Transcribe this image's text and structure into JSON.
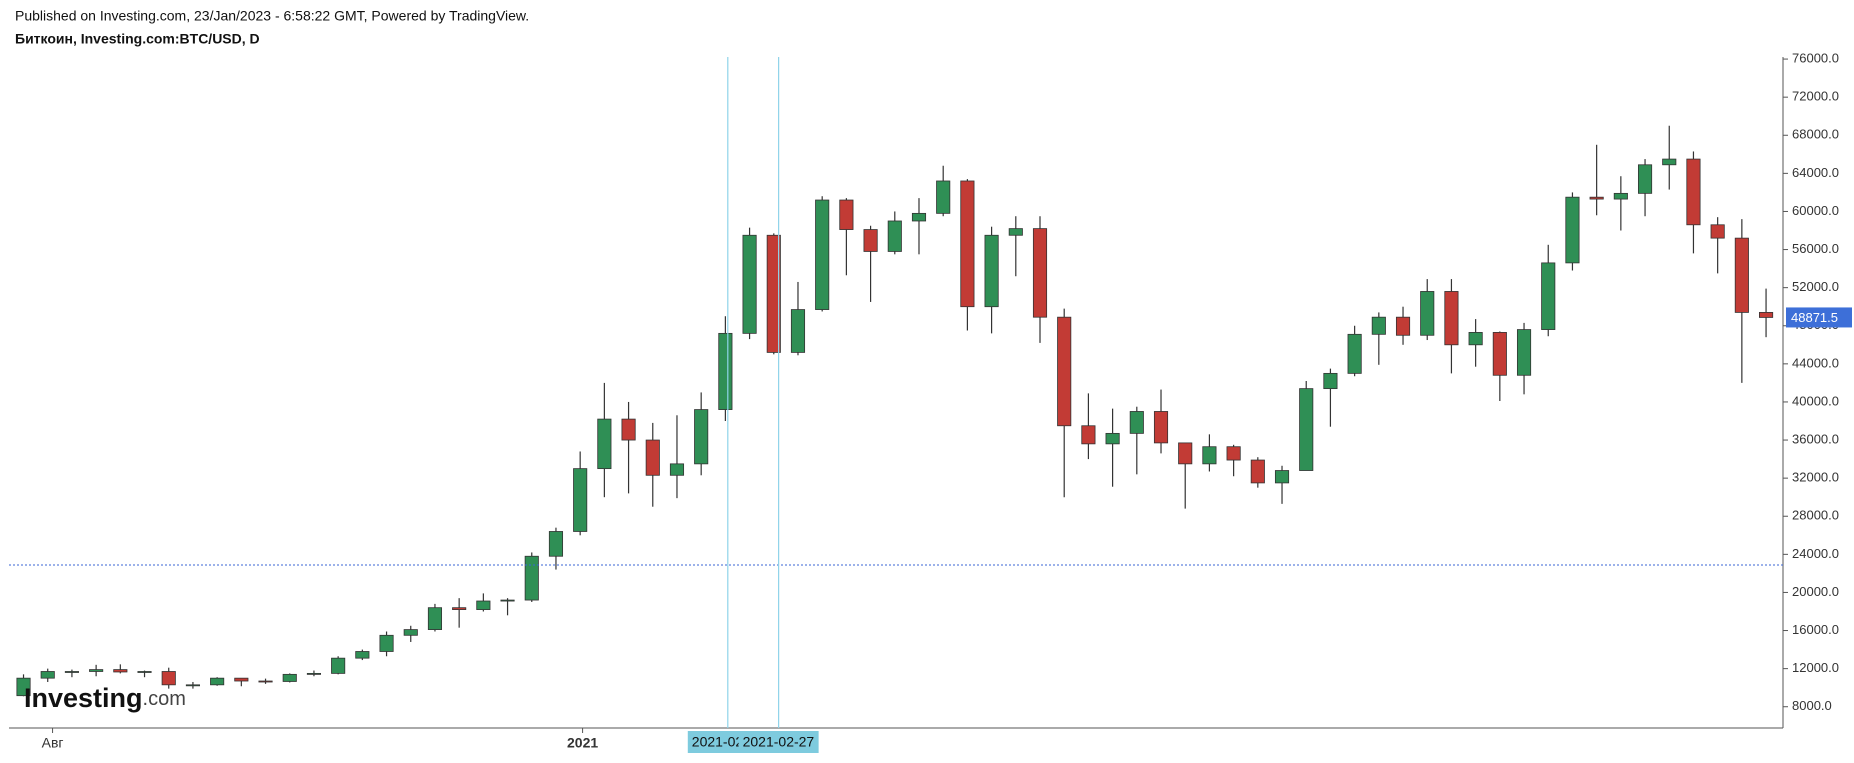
{
  "chart_data": {
    "type": "candlestick",
    "header": "Published on Investing.com, 23/Jan/2023 - 6:58:22 GMT, Powered by TradingView.",
    "title": "Биткоин, Investing.com:BTC/USD, D",
    "open": [
      9160,
      11000,
      11700,
      11700,
      11900,
      11650,
      11700,
      10300,
      10300,
      11000,
      10700,
      10650,
      11400,
      11500,
      13100,
      13800,
      15500,
      16100,
      18400,
      18200,
      19100,
      19200,
      23800,
      26400,
      33000,
      38200,
      36000,
      32300,
      33500,
      39200,
      47200,
      57500,
      45200,
      49700,
      61200,
      58100,
      55800,
      59000,
      59800,
      63200,
      50000,
      57500,
      58200,
      48900,
      37500,
      35600,
      36700,
      39000,
      35700,
      33500,
      35300,
      33900,
      31500,
      32800,
      41400,
      43000,
      47100,
      48900,
      47000,
      51600,
      46000,
      47300,
      42800,
      47600,
      54600,
      61500,
      61300,
      61900,
      64900,
      65500,
      58600,
      57200,
      49400
    ],
    "high": [
      11400,
      12000,
      11900,
      12400,
      12450,
      11800,
      12100,
      10600,
      11100,
      11000,
      10950,
      11500,
      11800,
      13300,
      14000,
      15900,
      16500,
      18800,
      19400,
      19900,
      19400,
      24200,
      26800,
      34800,
      42000,
      40000,
      37800,
      38600,
      41000,
      49000,
      58300,
      57700,
      52600,
      61600,
      61400,
      58500,
      60000,
      61400,
      64800,
      63400,
      58400,
      59500,
      59500,
      49800,
      40900,
      39300,
      39500,
      41300,
      35700,
      36600,
      35500,
      34200,
      33300,
      42200,
      43500,
      48000,
      49400,
      50000,
      52900,
      52900,
      48700,
      47400,
      48300,
      56500,
      62000,
      67000,
      63700,
      65500,
      69000,
      66300,
      59400,
      59200,
      51900
    ],
    "low": [
      9100,
      10600,
      11100,
      11200,
      11500,
      11100,
      9900,
      9900,
      10200,
      10150,
      10400,
      10550,
      11200,
      11400,
      12900,
      13300,
      14800,
      15900,
      16300,
      18000,
      17600,
      19000,
      22400,
      26000,
      30000,
      30400,
      29000,
      29900,
      32300,
      38000,
      46600,
      45000,
      44900,
      49500,
      53300,
      50500,
      55500,
      55500,
      59500,
      47500,
      47200,
      53200,
      46200,
      30000,
      34000,
      31100,
      32400,
      34600,
      28800,
      32700,
      32200,
      31000,
      29300,
      32800,
      37400,
      42700,
      43900,
      46000,
      46500,
      43000,
      43700,
      40100,
      40800,
      46900,
      53800,
      59600,
      58000,
      59500,
      62300,
      55600,
      53500,
      42000,
      46800
    ],
    "close": [
      11000,
      11700,
      11700,
      11900,
      11650,
      11700,
      10300,
      10300,
      11000,
      10700,
      10650,
      11400,
      11500,
      13100,
      13800,
      15500,
      16100,
      18400,
      18200,
      19100,
      19200,
      23800,
      26400,
      33000,
      38200,
      36000,
      32300,
      33500,
      39200,
      47200,
      57500,
      45200,
      49700,
      61200,
      58100,
      55800,
      59000,
      59800,
      63200,
      50000,
      57500,
      58200,
      48900,
      37500,
      35600,
      36700,
      39000,
      35700,
      33500,
      35300,
      33900,
      31500,
      32800,
      41400,
      43000,
      47100,
      48900,
      47000,
      51600,
      46000,
      47300,
      42800,
      47600,
      54600,
      61500,
      61300,
      61900,
      64900,
      65500,
      58600,
      57200,
      49400,
      48871.5
    ],
    "up_color": "#2f8f55",
    "down_color": "#c23b35",
    "ylim": [
      5767,
      76217
    ],
    "yticks": [
      {
        "value": 8000,
        "label": "8000.0"
      },
      {
        "value": 12000,
        "label": "12000.0"
      },
      {
        "value": 16000,
        "label": "16000.0"
      },
      {
        "value": 20000,
        "label": "20000.0"
      },
      {
        "value": 24000,
        "label": "24000.0"
      },
      {
        "value": 28000,
        "label": "28000.0"
      },
      {
        "value": 32000,
        "label": "32000.0"
      },
      {
        "value": 36000,
        "label": "36000.0"
      },
      {
        "value": 40000,
        "label": "40000.0"
      },
      {
        "value": 44000,
        "label": "44000.0"
      },
      {
        "value": 48000,
        "label": "48000.0"
      },
      {
        "value": 52000,
        "label": "52000.0"
      },
      {
        "value": 56000,
        "label": "56000.0"
      },
      {
        "value": 60000,
        "label": "60000.0"
      },
      {
        "value": 64000,
        "label": "64000.0"
      },
      {
        "value": 68000,
        "label": "68000.0"
      },
      {
        "value": 72000,
        "label": "72000.0"
      },
      {
        "value": 76000,
        "label": "76000.0"
      }
    ],
    "xlim": [
      -0.6,
      72.7
    ],
    "xticks": [
      {
        "value": 1.2,
        "label": "Авг"
      },
      {
        "value": 23.1,
        "label": "2021"
      }
    ],
    "last_price": 48871.5,
    "crosshair": {
      "y": 22884,
      "x": [
        29.1,
        31.2
      ],
      "x_labels": [
        "2021-02",
        "2021-02-27"
      ]
    },
    "logo": [
      "Investing",
      ".com"
    ]
  }
}
